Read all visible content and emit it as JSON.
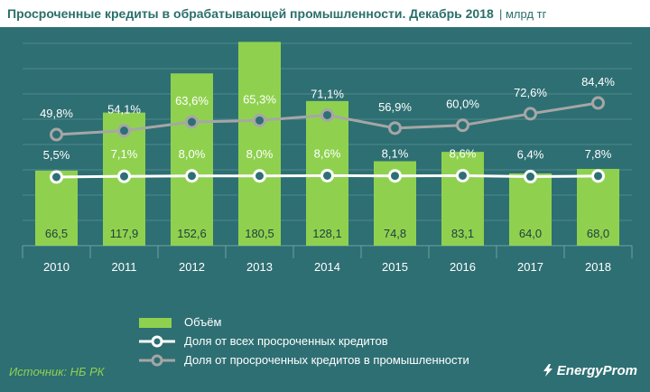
{
  "header": {
    "title": "Просроченные  кредиты в обрабатывающей  промышленности.  Декабрь 2018",
    "unit": "| млрд тг"
  },
  "chart_data": {
    "type": "bar",
    "categories": [
      "2010",
      "2011",
      "2012",
      "2013",
      "2014",
      "2015",
      "2016",
      "2017",
      "2018"
    ],
    "series": [
      {
        "name": "Объём",
        "kind": "bar",
        "color": "#8fd14f",
        "values": [
          66.5,
          117.9,
          152.6,
          180.5,
          128.1,
          74.8,
          83.1,
          64.0,
          68.0
        ],
        "labels": [
          "66,5",
          "117,9",
          "152,6",
          "180,5",
          "128,1",
          "74,8",
          "83,1",
          "64,0",
          "68,0"
        ]
      },
      {
        "name": "Доля от всех просроченных кредитов",
        "kind": "line",
        "color": "#ffffff",
        "values": [
          5.5,
          7.1,
          8.0,
          8.0,
          8.6,
          8.1,
          8.6,
          6.4,
          7.8
        ],
        "labels": [
          "5,5%",
          "7,1%",
          "8,0%",
          "8,0%",
          "8,6%",
          "8,1%",
          "8,6%",
          "6,4%",
          "7,8%"
        ]
      },
      {
        "name": "Доля от просроченных кредитов в промышленности",
        "kind": "line",
        "color": "#a6a6a6",
        "values": [
          49.8,
          54.1,
          63.6,
          65.3,
          71.1,
          56.9,
          60.0,
          72.6,
          84.4
        ],
        "labels": [
          "49,8%",
          "54,1%",
          "63,6%",
          "65,3%",
          "71,1%",
          "56,9%",
          "60,0%",
          "72,6%",
          "84,4%"
        ]
      }
    ],
    "grid": true,
    "legend": "bottom-left"
  },
  "footer": {
    "source": "Источник: НБ РК",
    "logo": "EnergyProm"
  }
}
